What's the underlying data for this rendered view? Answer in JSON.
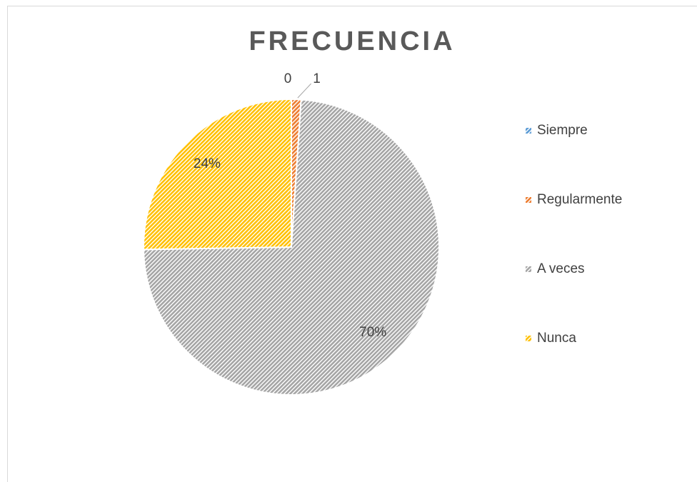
{
  "chart_data": {
    "type": "pie",
    "title": "FRECUENCIA",
    "categories": [
      "Siempre",
      "Regularmente",
      "A veces",
      "Nunca"
    ],
    "values": [
      0,
      1,
      70,
      24
    ],
    "value_labels": [
      "0",
      "1",
      "70%",
      "24%"
    ],
    "colors": [
      "#5b9bd5",
      "#ed7d31",
      "#a5a5a5",
      "#ffc000"
    ],
    "legend": "right"
  }
}
